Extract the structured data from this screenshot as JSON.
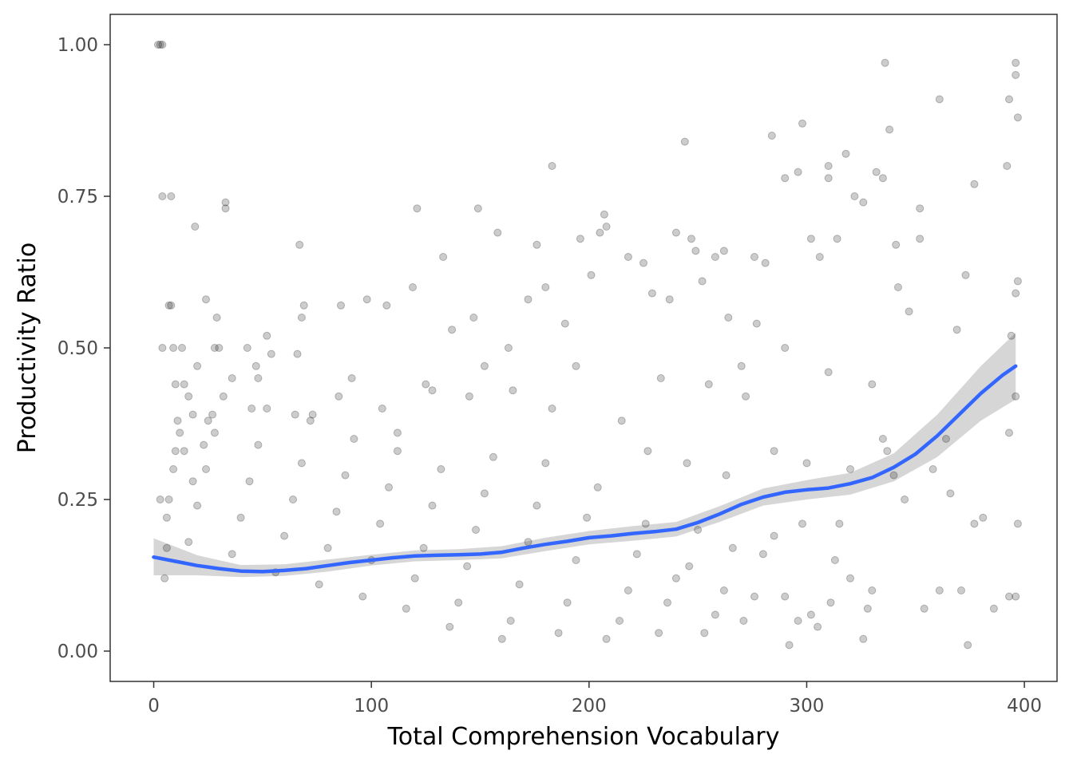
{
  "chart_data": {
    "type": "scatter",
    "title": "",
    "xlabel": "Total Comprehension Vocabulary",
    "ylabel": "Productivity Ratio",
    "xlim": [
      -20,
      415
    ],
    "ylim": [
      -0.05,
      1.05
    ],
    "x_ticks": [
      0,
      100,
      200,
      300,
      400
    ],
    "x_tick_labels": [
      "0",
      "100",
      "200",
      "300",
      "400"
    ],
    "y_ticks": [
      0.0,
      0.25,
      0.5,
      0.75,
      1.0
    ],
    "y_tick_labels": [
      "0.00",
      "0.25",
      "0.50",
      "0.75",
      "1.00"
    ],
    "grid": false,
    "legend": "none",
    "point_color": "#000000",
    "point_alpha": 0.2,
    "smooth_color": "#3366FF",
    "ribbon_color": "#999999",
    "points": [
      [
        2,
        1.0
      ],
      [
        3,
        1.0
      ],
      [
        4,
        1.0
      ],
      [
        4,
        0.75
      ],
      [
        8,
        0.75
      ],
      [
        7,
        0.57
      ],
      [
        8,
        0.57
      ],
      [
        9,
        0.5
      ],
      [
        13,
        0.5
      ],
      [
        4,
        0.5
      ],
      [
        7,
        0.25
      ],
      [
        3,
        0.25
      ],
      [
        10,
        0.33
      ],
      [
        14,
        0.33
      ],
      [
        19,
        0.7
      ],
      [
        24,
        0.58
      ],
      [
        29,
        0.55
      ],
      [
        28,
        0.5
      ],
      [
        33,
        0.73
      ],
      [
        33,
        0.74
      ],
      [
        14,
        0.44
      ],
      [
        10,
        0.44
      ],
      [
        16,
        0.42
      ],
      [
        11,
        0.38
      ],
      [
        18,
        0.39
      ],
      [
        20,
        0.47
      ],
      [
        23,
        0.34
      ],
      [
        27,
        0.39
      ],
      [
        36,
        0.45
      ],
      [
        30,
        0.5
      ],
      [
        43,
        0.5
      ],
      [
        47,
        0.47
      ],
      [
        48,
        0.45
      ],
      [
        52,
        0.52
      ],
      [
        54,
        0.49
      ],
      [
        67,
        0.67
      ],
      [
        69,
        0.57
      ],
      [
        68,
        0.55
      ],
      [
        66,
        0.49
      ],
      [
        73,
        0.39
      ],
      [
        86,
        0.57
      ],
      [
        91,
        0.45
      ],
      [
        98,
        0.58
      ],
      [
        107,
        0.57
      ],
      [
        112,
        0.36
      ],
      [
        119,
        0.6
      ],
      [
        121,
        0.73
      ],
      [
        128,
        0.43
      ],
      [
        133,
        0.65
      ],
      [
        137,
        0.53
      ],
      [
        149,
        0.73
      ],
      [
        158,
        0.69
      ],
      [
        147,
        0.55
      ],
      [
        152,
        0.47
      ],
      [
        163,
        0.5
      ],
      [
        172,
        0.58
      ],
      [
        176,
        0.67
      ],
      [
        183,
        0.8
      ],
      [
        180,
        0.6
      ],
      [
        189,
        0.54
      ],
      [
        194,
        0.47
      ],
      [
        196,
        0.68
      ],
      [
        201,
        0.62
      ],
      [
        207,
        0.72
      ],
      [
        208,
        0.7
      ],
      [
        205,
        0.69
      ],
      [
        218,
        0.65
      ],
      [
        225,
        0.64
      ],
      [
        229,
        0.59
      ],
      [
        237,
        0.58
      ],
      [
        240,
        0.69
      ],
      [
        244,
        0.84
      ],
      [
        247,
        0.68
      ],
      [
        249,
        0.66
      ],
      [
        252,
        0.61
      ],
      [
        262,
        0.66
      ],
      [
        258,
        0.65
      ],
      [
        264,
        0.55
      ],
      [
        270,
        0.47
      ],
      [
        276,
        0.65
      ],
      [
        277,
        0.54
      ],
      [
        281,
        0.64
      ],
      [
        284,
        0.85
      ],
      [
        290,
        0.78
      ],
      [
        296,
        0.79
      ],
      [
        298,
        0.87
      ],
      [
        302,
        0.68
      ],
      [
        306,
        0.65
      ],
      [
        310,
        0.8
      ],
      [
        310,
        0.78
      ],
      [
        314,
        0.68
      ],
      [
        318,
        0.82
      ],
      [
        322,
        0.75
      ],
      [
        326,
        0.74
      ],
      [
        332,
        0.79
      ],
      [
        335,
        0.78
      ],
      [
        336,
        0.97
      ],
      [
        338,
        0.86
      ],
      [
        341,
        0.67
      ],
      [
        342,
        0.6
      ],
      [
        347,
        0.56
      ],
      [
        352,
        0.73
      ],
      [
        352,
        0.68
      ],
      [
        361,
        0.91
      ],
      [
        369,
        0.53
      ],
      [
        373,
        0.62
      ],
      [
        377,
        0.77
      ],
      [
        392,
        0.8
      ],
      [
        393,
        0.91
      ],
      [
        396,
        0.97
      ],
      [
        396,
        0.95
      ],
      [
        397,
        0.88
      ],
      [
        397,
        0.61
      ],
      [
        396,
        0.59
      ],
      [
        394,
        0.52
      ],
      [
        396,
        0.42
      ],
      [
        393,
        0.36
      ],
      [
        397,
        0.21
      ],
      [
        393,
        0.09
      ],
      [
        396,
        0.09
      ],
      [
        386,
        0.07
      ],
      [
        377,
        0.21
      ],
      [
        381,
        0.22
      ],
      [
        371,
        0.1
      ],
      [
        374,
        0.01
      ],
      [
        366,
        0.26
      ],
      [
        364,
        0.35
      ],
      [
        358,
        0.3
      ],
      [
        361,
        0.1
      ],
      [
        354,
        0.07
      ],
      [
        345,
        0.25
      ],
      [
        337,
        0.33
      ],
      [
        335,
        0.35
      ],
      [
        330,
        0.1
      ],
      [
        328,
        0.07
      ],
      [
        326,
        0.02
      ],
      [
        320,
        0.12
      ],
      [
        315,
        0.21
      ],
      [
        313,
        0.15
      ],
      [
        311,
        0.08
      ],
      [
        305,
        0.04
      ],
      [
        302,
        0.06
      ],
      [
        298,
        0.21
      ],
      [
        296,
        0.05
      ],
      [
        292,
        0.01
      ],
      [
        290,
        0.09
      ],
      [
        285,
        0.19
      ],
      [
        280,
        0.16
      ],
      [
        276,
        0.09
      ],
      [
        271,
        0.05
      ],
      [
        266,
        0.17
      ],
      [
        262,
        0.1
      ],
      [
        258,
        0.06
      ],
      [
        253,
        0.03
      ],
      [
        250,
        0.2
      ],
      [
        246,
        0.14
      ],
      [
        240,
        0.12
      ],
      [
        236,
        0.08
      ],
      [
        232,
        0.03
      ],
      [
        226,
        0.21
      ],
      [
        222,
        0.16
      ],
      [
        218,
        0.1
      ],
      [
        214,
        0.05
      ],
      [
        208,
        0.02
      ],
      [
        204,
        0.27
      ],
      [
        199,
        0.22
      ],
      [
        194,
        0.15
      ],
      [
        190,
        0.08
      ],
      [
        186,
        0.03
      ],
      [
        180,
        0.31
      ],
      [
        176,
        0.24
      ],
      [
        172,
        0.18
      ],
      [
        168,
        0.11
      ],
      [
        164,
        0.05
      ],
      [
        160,
        0.02
      ],
      [
        156,
        0.32
      ],
      [
        152,
        0.26
      ],
      [
        148,
        0.2
      ],
      [
        144,
        0.14
      ],
      [
        140,
        0.08
      ],
      [
        136,
        0.04
      ],
      [
        132,
        0.3
      ],
      [
        128,
        0.24
      ],
      [
        124,
        0.17
      ],
      [
        120,
        0.12
      ],
      [
        116,
        0.07
      ],
      [
        112,
        0.33
      ],
      [
        108,
        0.27
      ],
      [
        104,
        0.21
      ],
      [
        100,
        0.15
      ],
      [
        96,
        0.09
      ],
      [
        92,
        0.35
      ],
      [
        88,
        0.29
      ],
      [
        84,
        0.23
      ],
      [
        80,
        0.17
      ],
      [
        76,
        0.11
      ],
      [
        72,
        0.38
      ],
      [
        68,
        0.31
      ],
      [
        64,
        0.25
      ],
      [
        60,
        0.19
      ],
      [
        56,
        0.13
      ],
      [
        52,
        0.4
      ],
      [
        48,
        0.34
      ],
      [
        44,
        0.28
      ],
      [
        40,
        0.22
      ],
      [
        36,
        0.16
      ],
      [
        32,
        0.42
      ],
      [
        28,
        0.36
      ],
      [
        24,
        0.3
      ],
      [
        20,
        0.24
      ],
      [
        16,
        0.18
      ],
      [
        12,
        0.36
      ],
      [
        9,
        0.3
      ],
      [
        6,
        0.22
      ],
      [
        6,
        0.17
      ],
      [
        5,
        0.12
      ],
      [
        215,
        0.38
      ],
      [
        227,
        0.33
      ],
      [
        245,
        0.31
      ],
      [
        263,
        0.29
      ],
      [
        285,
        0.33
      ],
      [
        300,
        0.31
      ],
      [
        320,
        0.3
      ],
      [
        340,
        0.29
      ],
      [
        233,
        0.45
      ],
      [
        255,
        0.44
      ],
      [
        272,
        0.42
      ],
      [
        290,
        0.5
      ],
      [
        310,
        0.46
      ],
      [
        330,
        0.44
      ],
      [
        183,
        0.4
      ],
      [
        165,
        0.43
      ],
      [
        145,
        0.42
      ],
      [
        125,
        0.44
      ],
      [
        105,
        0.4
      ],
      [
        85,
        0.42
      ],
      [
        65,
        0.39
      ],
      [
        45,
        0.4
      ],
      [
        25,
        0.38
      ],
      [
        18,
        0.28
      ]
    ],
    "curve_points": [
      [
        0,
        0.155
      ],
      [
        10,
        0.148
      ],
      [
        20,
        0.141
      ],
      [
        30,
        0.136
      ],
      [
        40,
        0.132
      ],
      [
        50,
        0.131
      ],
      [
        60,
        0.133
      ],
      [
        70,
        0.136
      ],
      [
        80,
        0.141
      ],
      [
        90,
        0.146
      ],
      [
        100,
        0.15
      ],
      [
        110,
        0.154
      ],
      [
        120,
        0.157
      ],
      [
        130,
        0.158
      ],
      [
        140,
        0.159
      ],
      [
        150,
        0.16
      ],
      [
        160,
        0.163
      ],
      [
        170,
        0.17
      ],
      [
        180,
        0.176
      ],
      [
        190,
        0.181
      ],
      [
        200,
        0.187
      ],
      [
        210,
        0.19
      ],
      [
        220,
        0.194
      ],
      [
        230,
        0.197
      ],
      [
        240,
        0.201
      ],
      [
        250,
        0.212
      ],
      [
        260,
        0.226
      ],
      [
        270,
        0.242
      ],
      [
        280,
        0.254
      ],
      [
        290,
        0.262
      ],
      [
        300,
        0.266
      ],
      [
        310,
        0.269
      ],
      [
        320,
        0.276
      ],
      [
        330,
        0.286
      ],
      [
        340,
        0.303
      ],
      [
        350,
        0.325
      ],
      [
        360,
        0.355
      ],
      [
        370,
        0.39
      ],
      [
        380,
        0.425
      ],
      [
        390,
        0.455
      ],
      [
        396,
        0.47
      ]
    ],
    "ribbon_lower": [
      [
        0,
        0.125
      ],
      [
        20,
        0.125
      ],
      [
        40,
        0.122
      ],
      [
        60,
        0.124
      ],
      [
        80,
        0.131
      ],
      [
        100,
        0.141
      ],
      [
        120,
        0.148
      ],
      [
        140,
        0.15
      ],
      [
        160,
        0.153
      ],
      [
        180,
        0.165
      ],
      [
        200,
        0.176
      ],
      [
        220,
        0.182
      ],
      [
        240,
        0.189
      ],
      [
        260,
        0.213
      ],
      [
        280,
        0.24
      ],
      [
        300,
        0.25
      ],
      [
        320,
        0.258
      ],
      [
        340,
        0.28
      ],
      [
        360,
        0.32
      ],
      [
        380,
        0.38
      ],
      [
        396,
        0.415
      ]
    ],
    "ribbon_upper": [
      [
        0,
        0.186
      ],
      [
        20,
        0.158
      ],
      [
        40,
        0.142
      ],
      [
        60,
        0.143
      ],
      [
        80,
        0.151
      ],
      [
        100,
        0.159
      ],
      [
        120,
        0.166
      ],
      [
        140,
        0.168
      ],
      [
        160,
        0.173
      ],
      [
        180,
        0.187
      ],
      [
        200,
        0.198
      ],
      [
        220,
        0.206
      ],
      [
        240,
        0.213
      ],
      [
        260,
        0.239
      ],
      [
        280,
        0.268
      ],
      [
        300,
        0.282
      ],
      [
        320,
        0.294
      ],
      [
        340,
        0.326
      ],
      [
        360,
        0.39
      ],
      [
        380,
        0.47
      ],
      [
        396,
        0.525
      ]
    ]
  }
}
